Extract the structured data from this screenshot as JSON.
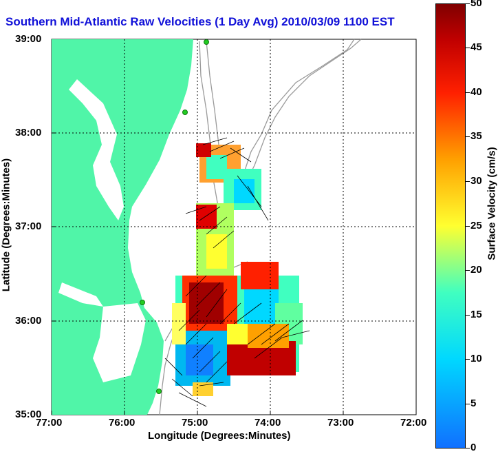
{
  "title": "Southern Mid-Atlantic Raw Velocities (1 Day Avg) 2010/03/09 1100 EST",
  "x_axis": {
    "label": "Longitude (Degrees:Minutes)",
    "ticks": [
      "77:00",
      "76:00",
      "75:00",
      "74:00",
      "73:00",
      "72:00"
    ]
  },
  "y_axis": {
    "label": "Latitude (Degrees:Minutes)",
    "ticks": [
      "39:00",
      "38:00",
      "37:00",
      "36:00",
      "35:00"
    ]
  },
  "colorbar": {
    "label": "Surface Velocity (cm/s)",
    "ticks": [
      "50",
      "45",
      "40",
      "35",
      "30",
      "25",
      "20",
      "15",
      "10",
      "5",
      "0"
    ],
    "range": [
      0,
      50
    ],
    "colormap": [
      "#1070ff",
      "#00d8ff",
      "#40ffc0",
      "#ffff30",
      "#ffa000",
      "#ff2000",
      "#c00000",
      "#800000"
    ]
  },
  "colors": {
    "land": "#50f5a8",
    "title": "#1010d8",
    "grid": "#000000",
    "bathymetry": "#9a9a9a",
    "station": "#22cc22"
  }
}
